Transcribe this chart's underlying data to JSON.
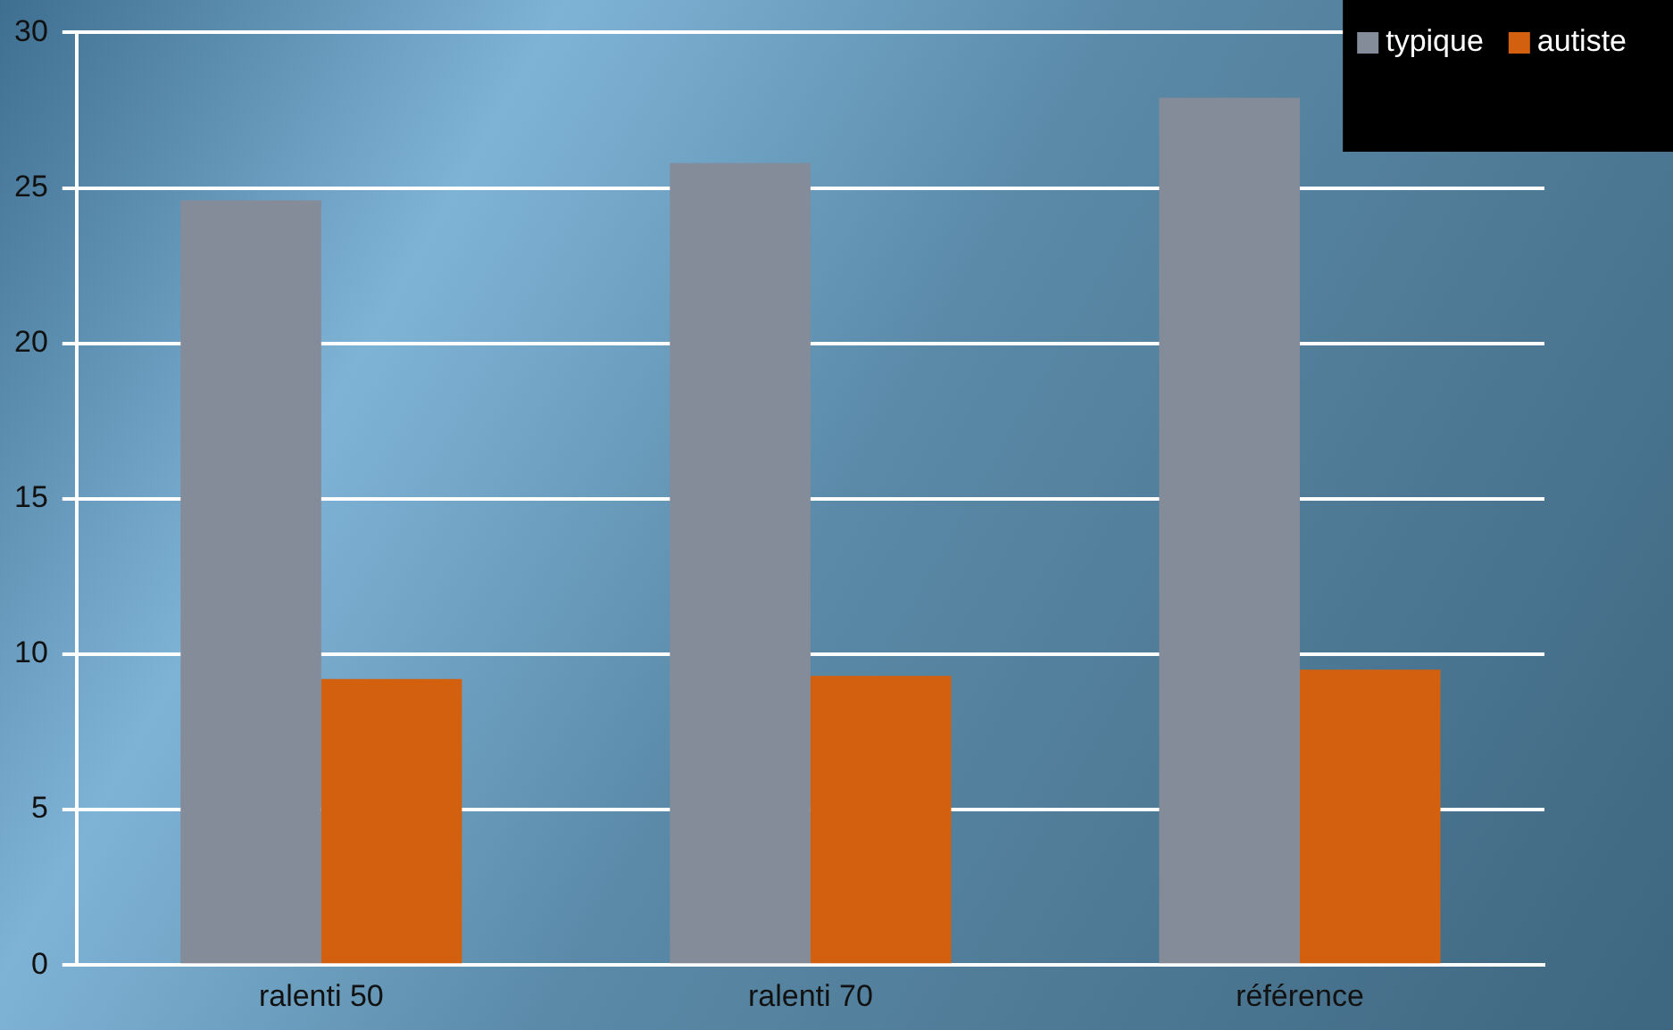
{
  "chart_data": {
    "type": "bar",
    "categories": [
      "ralenti 50",
      "ralenti 70",
      "référence"
    ],
    "series": [
      {
        "name": "typique",
        "color": "#848c9a",
        "values": [
          24.6,
          25.8,
          27.9
        ]
      },
      {
        "name": "autiste",
        "color": "#d2600e",
        "values": [
          9.2,
          9.3,
          9.5
        ]
      }
    ],
    "ylim": [
      0,
      30
    ],
    "yticks": [
      0,
      5,
      10,
      15,
      20,
      25,
      30
    ],
    "grid": "y",
    "legend": "top right"
  }
}
